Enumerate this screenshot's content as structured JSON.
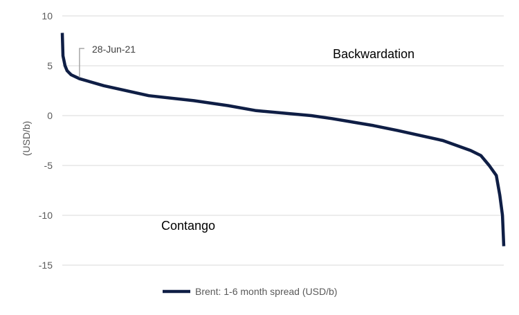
{
  "chart_data": {
    "type": "line",
    "title": "",
    "xlabel": "",
    "ylabel": "(USD/b)",
    "ylim": [
      -15,
      10
    ],
    "yticks": [
      "10",
      "5",
      "0",
      "-5",
      "-10",
      "-15"
    ],
    "ytick_values": [
      10,
      5,
      0,
      -5,
      -10,
      -15
    ],
    "grid": true,
    "legend_placement": "bottom",
    "series": [
      {
        "name": "Brent: 1-6 month spread (USD/b)",
        "color": "#0f1e45",
        "x_percentile": [
          0,
          0.16,
          0.63,
          1.1,
          2.0,
          3.9,
          9.4,
          19.6,
          29.8,
          37.6,
          43.9,
          56.4,
          61.1,
          70.5,
          76.0,
          86.2,
          92.5,
          94.8,
          96.7,
          98.3,
          99.1,
          99.7,
          100
        ],
        "values": [
          8.3,
          6.0,
          5.0,
          4.5,
          4.1,
          3.7,
          3.0,
          2.0,
          1.5,
          1.0,
          0.5,
          0.0,
          -0.3,
          -1.0,
          -1.5,
          -2.5,
          -3.5,
          -4.0,
          -5.0,
          -6.0,
          -8.0,
          -10.0,
          -13.1
        ]
      }
    ],
    "annotations": [
      {
        "text": "28-Jun-21",
        "x_percentile": 3.9,
        "value": 3.7
      },
      {
        "text": "Backwardation"
      },
      {
        "text": "Contango"
      }
    ]
  }
}
